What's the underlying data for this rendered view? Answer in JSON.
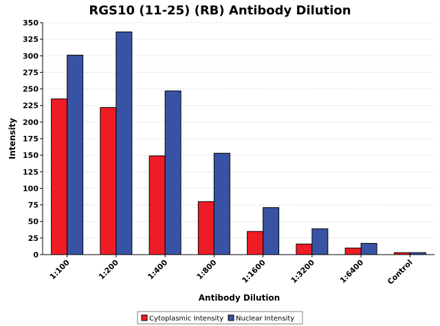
{
  "chart_data": {
    "type": "bar",
    "title": "RGS10 (11-25) (RB) Antibody Dilution",
    "xlabel": "Antibody Dilution",
    "ylabel": "Intensity",
    "ylim": [
      0,
      350
    ],
    "yticks": [
      0,
      25,
      50,
      75,
      100,
      125,
      150,
      175,
      200,
      225,
      250,
      275,
      300,
      325,
      350
    ],
    "grid": true,
    "legend_position": "bottom",
    "categories": [
      "1:100",
      "1:200",
      "1:400",
      "1:800",
      "1:1600",
      "1:3200",
      "1:6400",
      "Control"
    ],
    "series": [
      {
        "name": "Cytoplasmic Intensity",
        "color": "#ee1c25",
        "values": [
          235,
          222,
          149,
          80,
          35,
          16,
          10,
          3
        ]
      },
      {
        "name": "Nuclear Intensity",
        "color": "#3953a4",
        "values": [
          301,
          336,
          247,
          153,
          71,
          39,
          17,
          3
        ]
      }
    ]
  }
}
